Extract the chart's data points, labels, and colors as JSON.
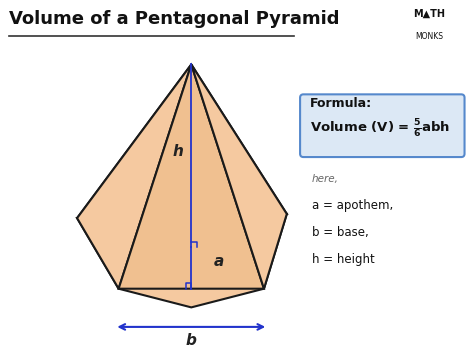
{
  "title": "Volume of a Pentagonal Pyramid",
  "bg_color": "#ffffff",
  "pyramid_fill": "#f5c9a0",
  "pyramid_edge": "#1a1a1a",
  "pyramid_fill_dark": "#e8b07a",
  "pyramid_fill_mid": "#f0c090",
  "line_color": "#2233cc",
  "formula_box_color": "#dce8f5",
  "formula_box_edge": "#5588cc",
  "title_fontsize": 13,
  "formula_label": "Formula:",
  "here_text": "here,",
  "var_a": "a = apothem,",
  "var_b": "b = base,",
  "var_h": "h = height",
  "label_a": "a",
  "label_b": "b",
  "label_h": "h",
  "math_monks_line1": "M▲TH",
  "math_monks_line2": "MONKS"
}
